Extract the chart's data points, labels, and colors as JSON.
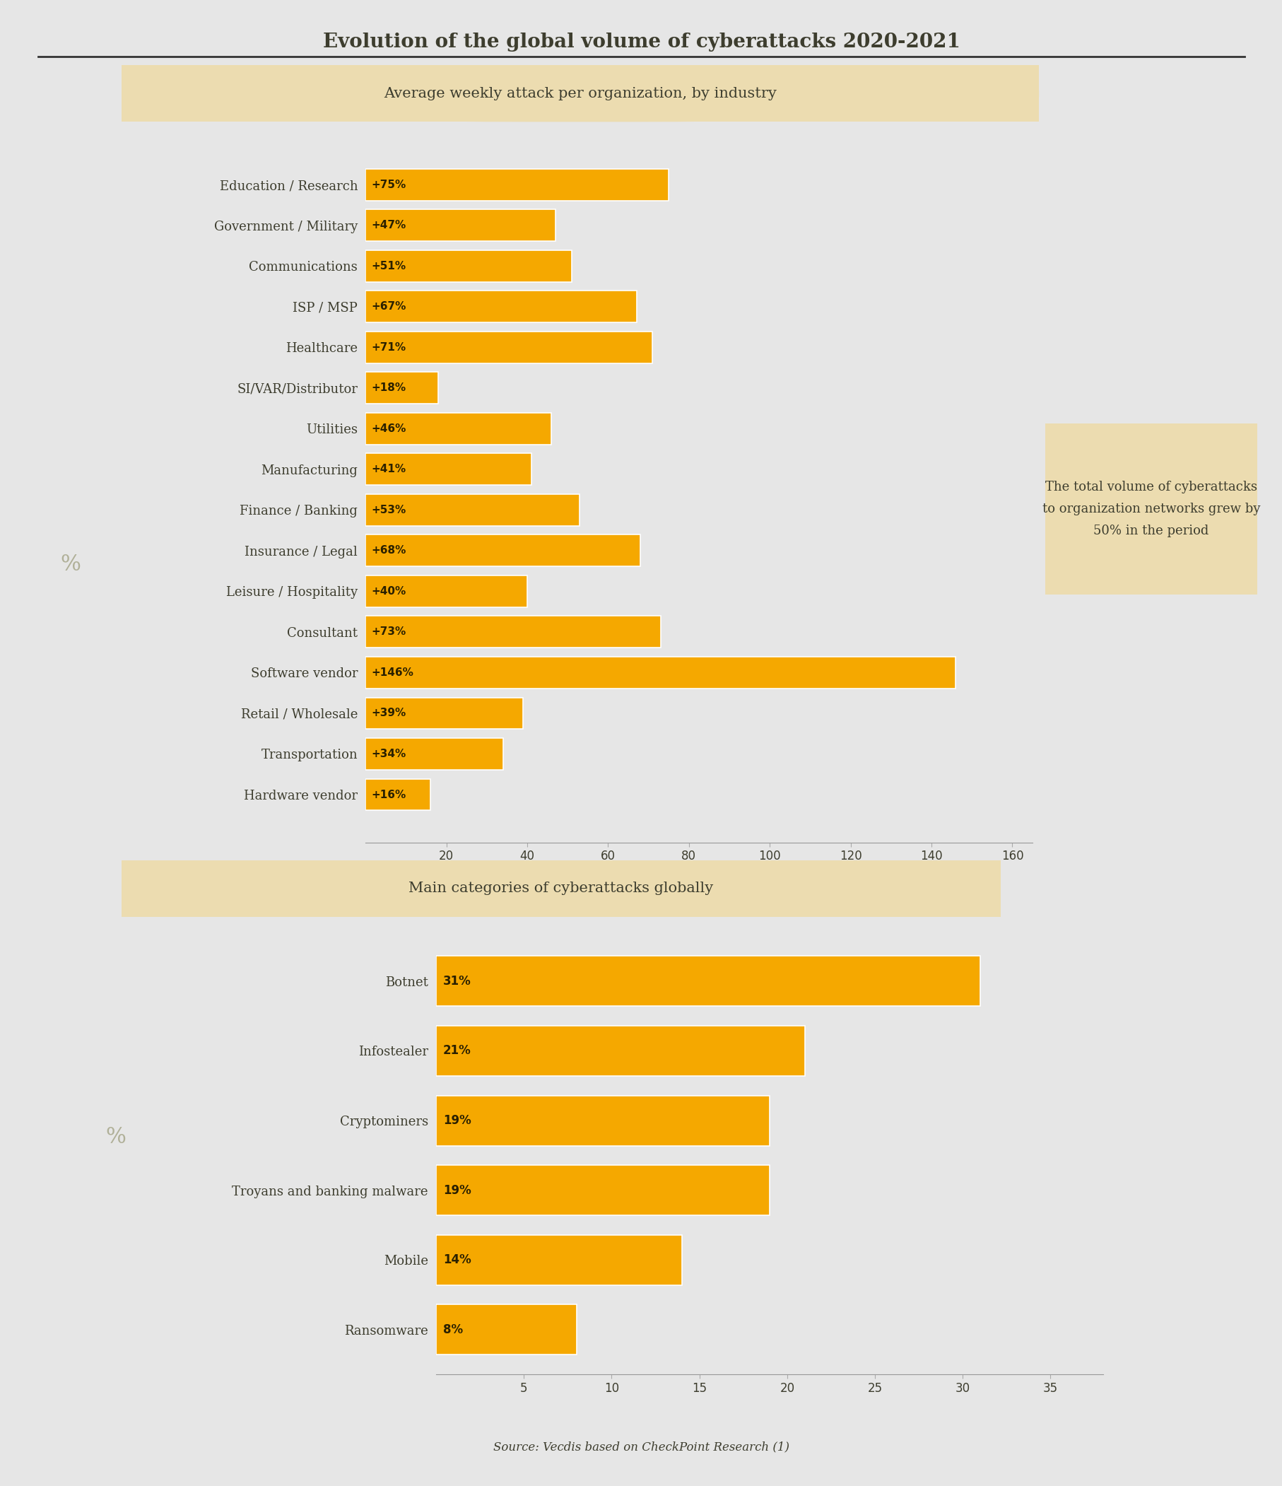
{
  "title": "Evolution of the global volume of cyberattacks 2020-2021",
  "background_color": "#e6e6e6",
  "bar_color": "#f5a800",
  "text_color": "#3d3d2e",
  "section1_label": "Average weekly attack per organization, by industry",
  "section1_box_color": "#ecdcb0",
  "section2_label": "Main categories of cyberattacks globally",
  "section2_box_color": "#ecdcb0",
  "callout_text": "The total volume of cyberattacks\nto organization networks grew by\n50% in the period",
  "callout_box_color": "#ecdcb0",
  "source_text": "Source: Vecdis based on CheckPoint Research (1)",
  "chart1": {
    "categories": [
      "Education / Research",
      "Government / Military",
      "Communications",
      "ISP / MSP",
      "Healthcare",
      "SI/VAR/Distributor",
      "Utilities",
      "Manufacturing",
      "Finance / Banking",
      "Insurance / Legal",
      "Leisure / Hospitality",
      "Consultant",
      "Software vendor",
      "Retail / Wholesale",
      "Transportation",
      "Hardware vendor"
    ],
    "values": [
      75,
      47,
      51,
      67,
      71,
      18,
      46,
      41,
      53,
      68,
      40,
      73,
      146,
      39,
      34,
      16
    ],
    "labels": [
      "+75%",
      "+47%",
      "+51%",
      "+67%",
      "+71%",
      "+18%",
      "+46%",
      "+41%",
      "+53%",
      "+68%",
      "+40%",
      "+73%",
      "+146%",
      "+39%",
      "+34%",
      "+16%"
    ],
    "xlim": [
      0,
      165
    ],
    "xticks": [
      20,
      40,
      60,
      80,
      100,
      120,
      140,
      160
    ],
    "percent_symbol_row": 8
  },
  "chart2": {
    "categories": [
      "Botnet",
      "Infostealer",
      "Cryptominers",
      "Troyans and banking malware",
      "Mobile",
      "Ransomware"
    ],
    "values": [
      31,
      21,
      19,
      19,
      14,
      8
    ],
    "labels": [
      "31%",
      "21%",
      "19%",
      "19%",
      "14%",
      "8%"
    ],
    "xlim": [
      0,
      38
    ],
    "xticks": [
      5,
      10,
      15,
      20,
      25,
      30,
      35
    ],
    "percent_symbol_row": 3
  }
}
